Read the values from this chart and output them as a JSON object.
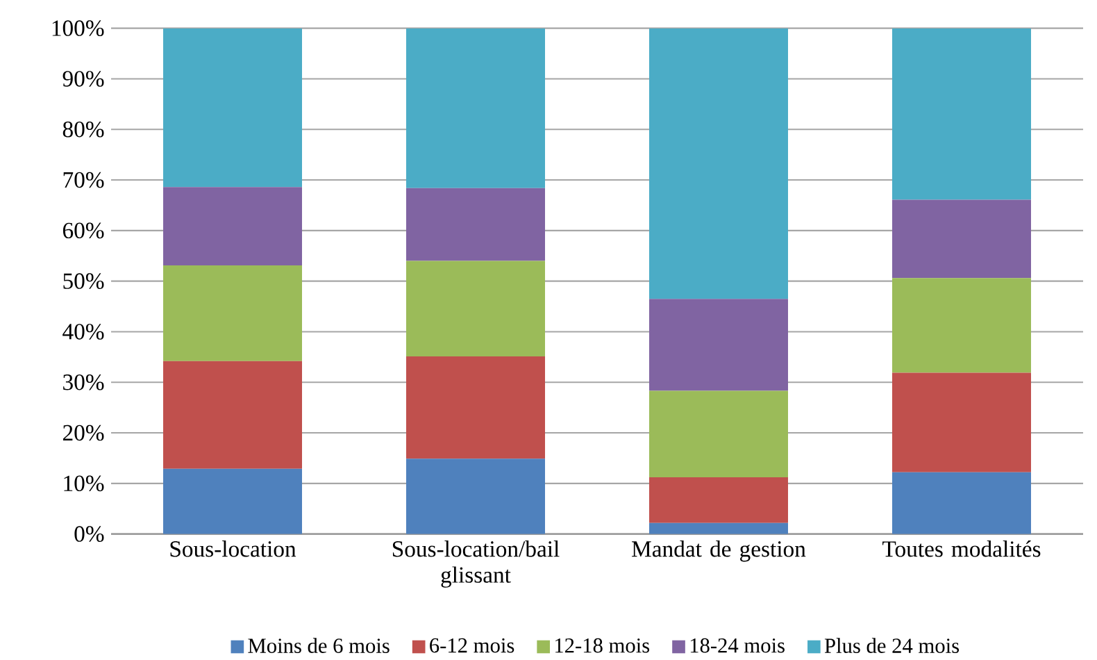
{
  "chart_data": {
    "type": "bar",
    "stacked": true,
    "categories": [
      "Sous-location",
      "Sous-location/bail glissant",
      "Mandat de gestion",
      "Toutes modalités"
    ],
    "series": [
      {
        "name": "Moins de 6 mois",
        "color": "#4f81bd",
        "values": [
          12.9,
          14.9,
          2.2,
          12.2
        ]
      },
      {
        "name": "6-12 mois",
        "color": "#c0504d",
        "values": [
          21.3,
          20.2,
          9.0,
          19.7
        ]
      },
      {
        "name": "12-18 mois",
        "color": "#9bbb59",
        "values": [
          18.9,
          18.9,
          17.1,
          18.7
        ]
      },
      {
        "name": "18-24 mois",
        "color": "#8064a2",
        "values": [
          15.5,
          14.4,
          18.2,
          15.5
        ]
      },
      {
        "name": "Plus de 24 mois",
        "color": "#4bacc6",
        "values": [
          31.4,
          31.6,
          53.5,
          33.9
        ]
      }
    ],
    "ylim": [
      0,
      100
    ],
    "yticks": [
      {
        "value": 0,
        "label": "0%"
      },
      {
        "value": 10,
        "label": "10%"
      },
      {
        "value": 20,
        "label": "20%"
      },
      {
        "value": 30,
        "label": "30%"
      },
      {
        "value": 40,
        "label": "40%"
      },
      {
        "value": 50,
        "label": "50%"
      },
      {
        "value": 60,
        "label": "60%"
      },
      {
        "value": 70,
        "label": "70%"
      },
      {
        "value": 80,
        "label": "80%"
      },
      {
        "value": 90,
        "label": "90%"
      },
      {
        "value": 100,
        "label": "100%"
      }
    ],
    "grid": "y",
    "legend": "bottom"
  }
}
